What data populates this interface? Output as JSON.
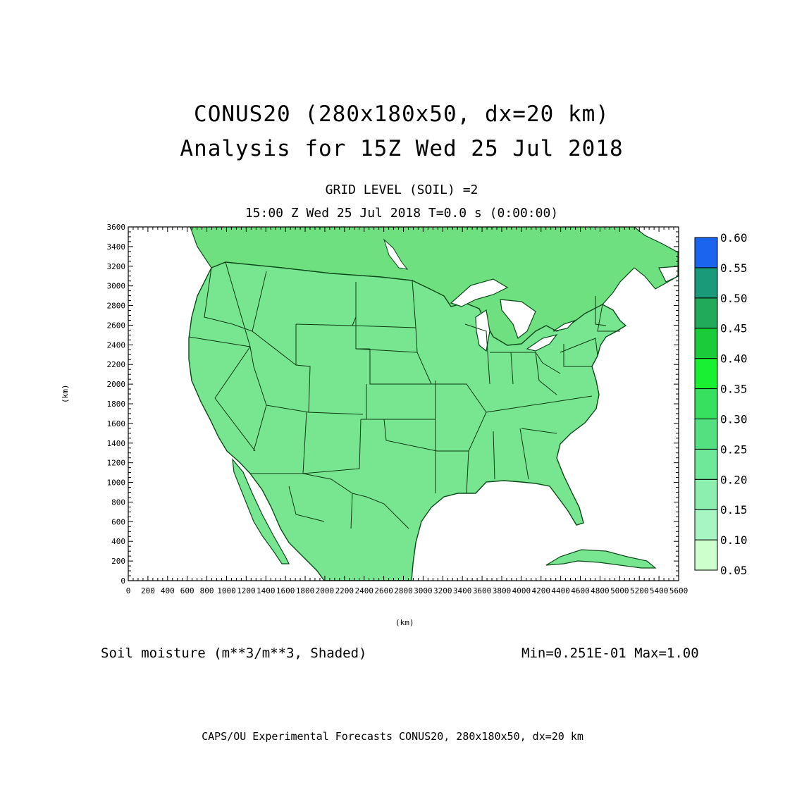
{
  "titles": {
    "line1": "CONUS20 (280x180x50, dx=20 km)",
    "line2": "Analysis for 15Z Wed 25 Jul 2018",
    "grid_level": "GRID LEVEL (SOIL) =2",
    "valid_time": "15:00 Z Wed 25 Jul 2018   T=0.0 s (0:00:00)"
  },
  "axes": {
    "x_label": "(km)",
    "y_label": "(km)",
    "x_ticks": [
      "0",
      "200",
      "400",
      "600",
      "800",
      "1000",
      "1200",
      "1400",
      "1600",
      "1800",
      "2000",
      "2200",
      "2400",
      "2600",
      "2800",
      "3000",
      "3200",
      "3400",
      "3600",
      "3800",
      "4000",
      "4200",
      "4400",
      "4600",
      "4800",
      "5000",
      "5200",
      "5400",
      "5600"
    ],
    "y_ticks": [
      "0",
      "200",
      "400",
      "600",
      "800",
      "1000",
      "1200",
      "1400",
      "1600",
      "1800",
      "2000",
      "2200",
      "2400",
      "2600",
      "2800",
      "3000",
      "3200",
      "3400",
      "3600"
    ],
    "x_range": [
      0,
      5600
    ],
    "y_range": [
      0,
      3600
    ]
  },
  "colorbar": {
    "levels": [
      "0.05",
      "0.10",
      "0.15",
      "0.20",
      "0.25",
      "0.30",
      "0.35",
      "0.40",
      "0.45",
      "0.50",
      "0.55",
      "0.60"
    ],
    "colors": [
      "#ccffcc",
      "#a8f5c4",
      "#8cefb0",
      "#70e89a",
      "#54e080",
      "#38e060",
      "#18f030",
      "#1bcc3a",
      "#20aa5a",
      "#1a9a78",
      "#138c8c",
      "#1a64ee"
    ]
  },
  "field": {
    "description_label": "Soil moisture (m**3/m**3, Shaded)",
    "stats": "Min=0.251E-01 Max=1.00"
  },
  "credits": "CAPS/OU Experimental Forecasts  CONUS20, 280x180x50, dx=20 km"
}
